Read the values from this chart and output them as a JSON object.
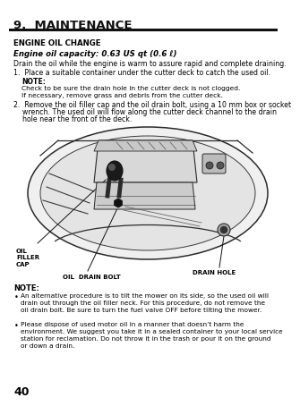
{
  "title": "9.  MAINTENANCE",
  "section_title": "ENGINE OIL CHANGE",
  "capacity_line": "Engine oil capacity: 0.63 US qt (0.6 ℓ)",
  "intro_text": "Drain the oil while the engine is warm to assure rapid and complete draining.",
  "step1": "1.  Place a suitable container under the cutter deck to catch the used oil.",
  "note1_label": "NOTE:",
  "note1_text": "Check to be sure the drain hole in the cutter deck is not clogged.\nIf necessary, remove grass and debris from the cutter deck.",
  "step2_line1": "2.  Remove the oil filler cap and the oil drain bolt, using a 10 mm box or socket",
  "step2_line2": "    wrench. The used oil will flow along the cutter deck channel to the drain",
  "step2_line3": "    hole near the front of the deck.",
  "label_oil_filler": "OIL\nFILLER\nCAP",
  "label_drain_bolt": "OIL  DRAIN BOLT",
  "label_drain_hole": "DRAIN HOLE",
  "note2_title": "NOTE:",
  "note2_bullet1": "An alternative procedure is to tilt the mower on its side, so the used oil will\ndrain out through the oil filler neck. For this procedure, do not remove the\noil drain bolt. Be sure to turn the fuel valve OFF before tilting the mower.",
  "note2_bullet2": "Please dispose of used motor oil in a manner that doesn’t harm the\nenvironment. We suggest you take it in a sealed container to your local service\nstation for reclamation. Do not throw it in the trash or pour it on the ground\nor down a drain.",
  "page_number": "40",
  "bg_color": "#ffffff",
  "text_color": "#000000"
}
